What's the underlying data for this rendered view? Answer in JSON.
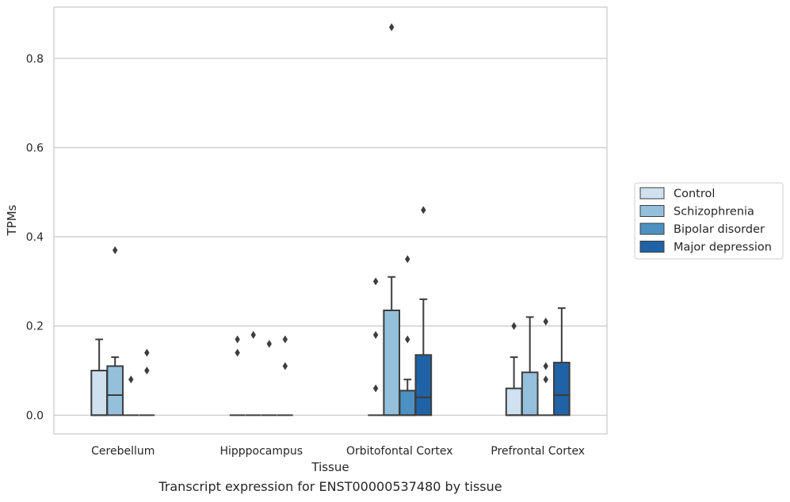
{
  "chart_data": {
    "type": "box",
    "xlabel": "Tissue",
    "ylabel": "TPMs",
    "ylim": [
      -0.042,
      0.915
    ],
    "yticks": [
      0.0,
      0.2,
      0.4,
      0.6,
      0.8
    ],
    "ytick_labels": [
      "0.0",
      "0.2",
      "0.4",
      "0.6",
      "0.8"
    ],
    "grid": "horizontal",
    "legend_position": "right",
    "categories": [
      "Cerebellum",
      "Hipppocampus",
      "Orbitofontal Cortex",
      "Prefrontal Cortex"
    ],
    "series": [
      {
        "name": "Control",
        "color": "#cfe0ef",
        "boxes": [
          {
            "q1": 0.0,
            "median": 0.0,
            "q3": 0.1,
            "whisker_low": 0.0,
            "whisker_high": 0.17,
            "outliers": []
          },
          {
            "q1": 0.0,
            "median": 0.0,
            "q3": 0.0,
            "whisker_low": 0.0,
            "whisker_high": 0.0,
            "outliers": [
              0.14,
              0.17
            ]
          },
          {
            "q1": 0.0,
            "median": 0.0,
            "q3": 0.0,
            "whisker_low": 0.0,
            "whisker_high": 0.0,
            "outliers": [
              0.06,
              0.18,
              0.3
            ]
          },
          {
            "q1": 0.0,
            "median": 0.0,
            "q3": 0.06,
            "whisker_low": 0.0,
            "whisker_high": 0.13,
            "outliers": [
              0.2
            ]
          }
        ]
      },
      {
        "name": "Schizophrenia",
        "color": "#94c0dc",
        "boxes": [
          {
            "q1": 0.0,
            "median": 0.045,
            "q3": 0.11,
            "whisker_low": 0.0,
            "whisker_high": 0.13,
            "outliers": [
              0.37
            ]
          },
          {
            "q1": 0.0,
            "median": 0.0,
            "q3": 0.0,
            "whisker_low": 0.0,
            "whisker_high": 0.0,
            "outliers": [
              0.18
            ]
          },
          {
            "q1": 0.0,
            "median": 0.0,
            "q3": 0.235,
            "whisker_low": 0.0,
            "whisker_high": 0.31,
            "outliers": [
              0.87
            ]
          },
          {
            "q1": 0.0,
            "median": 0.0,
            "q3": 0.096,
            "whisker_low": 0.0,
            "whisker_high": 0.22,
            "outliers": []
          }
        ]
      },
      {
        "name": "Bipolar disorder",
        "color": "#4d91c2",
        "boxes": [
          {
            "q1": 0.0,
            "median": 0.0,
            "q3": 0.0,
            "whisker_low": 0.0,
            "whisker_high": 0.0,
            "outliers": [
              0.08
            ]
          },
          {
            "q1": 0.0,
            "median": 0.0,
            "q3": 0.0,
            "whisker_low": 0.0,
            "whisker_high": 0.0,
            "outliers": [
              0.16
            ]
          },
          {
            "q1": 0.0,
            "median": 0.0,
            "q3": 0.055,
            "whisker_low": 0.0,
            "whisker_high": 0.08,
            "outliers": [
              0.17,
              0.35
            ]
          },
          {
            "q1": 0.0,
            "median": 0.0,
            "q3": 0.0,
            "whisker_low": 0.0,
            "whisker_high": 0.0,
            "outliers": [
              0.08,
              0.11,
              0.21
            ]
          }
        ]
      },
      {
        "name": "Major depression",
        "color": "#2062a6",
        "boxes": [
          {
            "q1": 0.0,
            "median": 0.0,
            "q3": 0.0,
            "whisker_low": 0.0,
            "whisker_high": 0.0,
            "outliers": [
              0.1,
              0.14
            ]
          },
          {
            "q1": 0.0,
            "median": 0.0,
            "q3": 0.0,
            "whisker_low": 0.0,
            "whisker_high": 0.0,
            "outliers": [
              0.11,
              0.17
            ]
          },
          {
            "q1": 0.0,
            "median": 0.04,
            "q3": 0.135,
            "whisker_low": 0.0,
            "whisker_high": 0.26,
            "outliers": [
              0.46
            ]
          },
          {
            "q1": 0.0,
            "median": 0.045,
            "q3": 0.118,
            "whisker_low": 0.0,
            "whisker_high": 0.24,
            "outliers": []
          }
        ]
      }
    ]
  },
  "caption": "Transcript expression for ENST00000537480 by tissue"
}
